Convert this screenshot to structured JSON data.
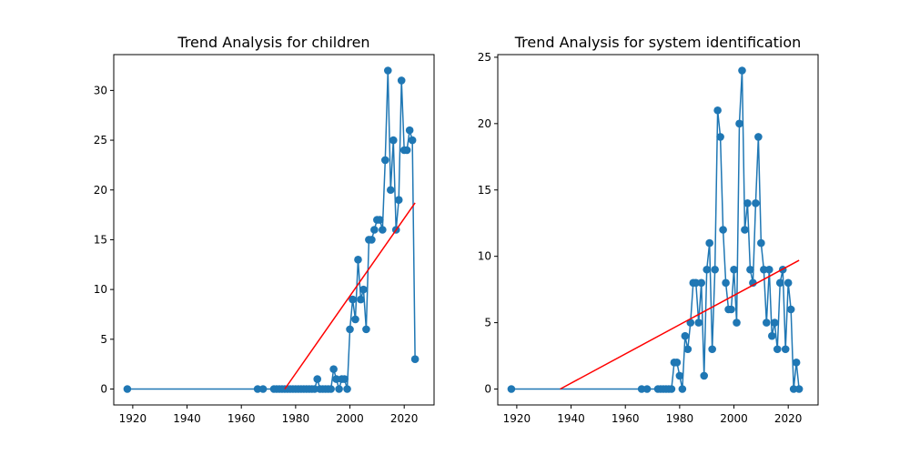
{
  "chart_data": [
    {
      "type": "line",
      "title": "Trend Analysis for children",
      "xlabel": "",
      "ylabel": "",
      "xlim": [
        1913,
        2031
      ],
      "ylim": [
        -1.6,
        33.6
      ],
      "xticks": [
        1920,
        1940,
        1960,
        1980,
        2000,
        2020
      ],
      "yticks": [
        0,
        5,
        10,
        15,
        20,
        25,
        30
      ],
      "grid": false,
      "series": [
        {
          "marker": "circle",
          "color": "#1f77b4",
          "points": [
            [
              1918,
              0
            ],
            [
              1966,
              0
            ],
            [
              1968,
              0
            ],
            [
              1972,
              0
            ],
            [
              1973,
              0
            ],
            [
              1974,
              0
            ],
            [
              1975,
              0
            ],
            [
              1976,
              0
            ],
            [
              1977,
              0
            ],
            [
              1978,
              0
            ],
            [
              1979,
              0
            ],
            [
              1980,
              0
            ],
            [
              1981,
              0
            ],
            [
              1982,
              0
            ],
            [
              1983,
              0
            ],
            [
              1984,
              0
            ],
            [
              1985,
              0
            ],
            [
              1986,
              0
            ],
            [
              1987,
              0
            ],
            [
              1988,
              1
            ],
            [
              1989,
              0
            ],
            [
              1990,
              0
            ],
            [
              1991,
              0
            ],
            [
              1992,
              0
            ],
            [
              1993,
              0
            ],
            [
              1994,
              2
            ],
            [
              1995,
              1
            ],
            [
              1996,
              0
            ],
            [
              1997,
              1
            ],
            [
              1998,
              1
            ],
            [
              1999,
              0
            ],
            [
              2000,
              6
            ],
            [
              2001,
              9
            ],
            [
              2002,
              7
            ],
            [
              2003,
              13
            ],
            [
              2004,
              9
            ],
            [
              2005,
              10
            ],
            [
              2006,
              6
            ],
            [
              2007,
              15
            ],
            [
              2008,
              15
            ],
            [
              2009,
              16
            ],
            [
              2010,
              17
            ],
            [
              2011,
              17
            ],
            [
              2012,
              16
            ],
            [
              2013,
              23
            ],
            [
              2014,
              32
            ],
            [
              2015,
              20
            ],
            [
              2016,
              25
            ],
            [
              2017,
              16
            ],
            [
              2018,
              19
            ],
            [
              2019,
              31
            ],
            [
              2020,
              24
            ],
            [
              2021,
              24
            ],
            [
              2022,
              26
            ],
            [
              2023,
              25
            ],
            [
              2024,
              3
            ]
          ]
        },
        {
          "color": "#ff0000",
          "points": [
            [
              1976,
              0
            ],
            [
              2024,
              18.7
            ]
          ]
        }
      ]
    },
    {
      "type": "line",
      "title": "Trend Analysis for system identification",
      "xlabel": "",
      "ylabel": "",
      "xlim": [
        1913,
        2031
      ],
      "ylim": [
        -1.2,
        25.2
      ],
      "xticks": [
        1920,
        1940,
        1960,
        1980,
        2000,
        2020
      ],
      "yticks": [
        0,
        5,
        10,
        15,
        20,
        25
      ],
      "grid": false,
      "series": [
        {
          "marker": "circle",
          "color": "#1f77b4",
          "points": [
            [
              1918,
              0
            ],
            [
              1966,
              0
            ],
            [
              1968,
              0
            ],
            [
              1972,
              0
            ],
            [
              1973,
              0
            ],
            [
              1974,
              0
            ],
            [
              1975,
              0
            ],
            [
              1976,
              0
            ],
            [
              1977,
              0
            ],
            [
              1978,
              2
            ],
            [
              1979,
              2
            ],
            [
              1980,
              1
            ],
            [
              1981,
              0
            ],
            [
              1982,
              4
            ],
            [
              1983,
              3
            ],
            [
              1984,
              5
            ],
            [
              1985,
              8
            ],
            [
              1986,
              8
            ],
            [
              1987,
              5
            ],
            [
              1988,
              8
            ],
            [
              1989,
              1
            ],
            [
              1990,
              9
            ],
            [
              1991,
              11
            ],
            [
              1992,
              3
            ],
            [
              1993,
              9
            ],
            [
              1994,
              21
            ],
            [
              1995,
              19
            ],
            [
              1996,
              12
            ],
            [
              1997,
              8
            ],
            [
              1998,
              6
            ],
            [
              1999,
              6
            ],
            [
              2000,
              9
            ],
            [
              2001,
              5
            ],
            [
              2002,
              20
            ],
            [
              2003,
              24
            ],
            [
              2004,
              12
            ],
            [
              2005,
              14
            ],
            [
              2006,
              9
            ],
            [
              2007,
              8
            ],
            [
              2008,
              14
            ],
            [
              2009,
              19
            ],
            [
              2010,
              11
            ],
            [
              2011,
              9
            ],
            [
              2012,
              5
            ],
            [
              2013,
              9
            ],
            [
              2014,
              4
            ],
            [
              2015,
              5
            ],
            [
              2016,
              3
            ],
            [
              2017,
              8
            ],
            [
              2018,
              9
            ],
            [
              2019,
              3
            ],
            [
              2020,
              8
            ],
            [
              2021,
              6
            ],
            [
              2022,
              0
            ],
            [
              2023,
              2
            ],
            [
              2024,
              0
            ]
          ]
        },
        {
          "color": "#ff0000",
          "points": [
            [
              1936,
              0
            ],
            [
              2024,
              9.7
            ]
          ]
        }
      ]
    }
  ]
}
